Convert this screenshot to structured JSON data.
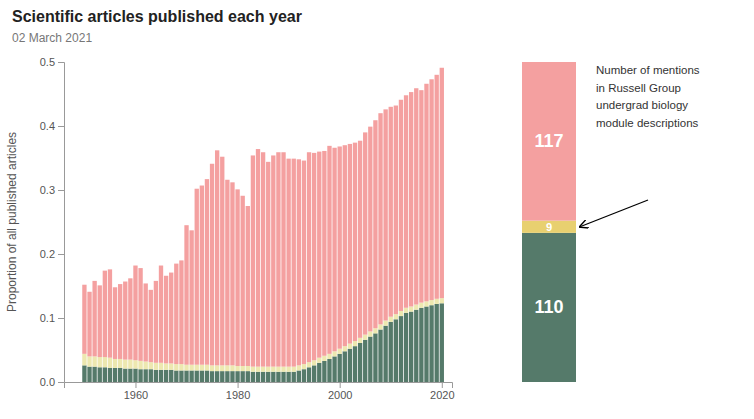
{
  "chart_data": [
    {
      "type": "bar",
      "stacked": true,
      "grid": false,
      "title": "Scientific articles published each year",
      "subtitle": "02 March 2021",
      "ylabel": "Proportion of all published articles",
      "x": [
        1950,
        1951,
        1952,
        1953,
        1954,
        1955,
        1956,
        1957,
        1958,
        1959,
        1960,
        1961,
        1962,
        1963,
        1964,
        1965,
        1966,
        1967,
        1968,
        1969,
        1970,
        1971,
        1972,
        1973,
        1974,
        1975,
        1976,
        1977,
        1978,
        1979,
        1980,
        1981,
        1982,
        1983,
        1984,
        1985,
        1986,
        1987,
        1988,
        1989,
        1990,
        1991,
        1992,
        1993,
        1994,
        1995,
        1996,
        1997,
        1998,
        1999,
        2000,
        2001,
        2002,
        2003,
        2004,
        2005,
        2006,
        2007,
        2008,
        2009,
        2010,
        2011,
        2012,
        2013,
        2014,
        2015,
        2016,
        2017,
        2018,
        2019,
        2020
      ],
      "series": [
        {
          "color": "#557a6a",
          "values": [
            0.026,
            0.024,
            0.024,
            0.023,
            0.023,
            0.022,
            0.022,
            0.022,
            0.021,
            0.021,
            0.021,
            0.02,
            0.02,
            0.02,
            0.019,
            0.019,
            0.019,
            0.019,
            0.018,
            0.018,
            0.018,
            0.018,
            0.018,
            0.018,
            0.018,
            0.017,
            0.017,
            0.017,
            0.017,
            0.017,
            0.017,
            0.017,
            0.017,
            0.016,
            0.016,
            0.016,
            0.016,
            0.016,
            0.016,
            0.016,
            0.016,
            0.016,
            0.018,
            0.02,
            0.023,
            0.026,
            0.03,
            0.033,
            0.036,
            0.04,
            0.044,
            0.048,
            0.052,
            0.056,
            0.061,
            0.066,
            0.071,
            0.076,
            0.082,
            0.088,
            0.094,
            0.098,
            0.103,
            0.108,
            0.11,
            0.113,
            0.116,
            0.118,
            0.12,
            0.122,
            0.123
          ]
        },
        {
          "color": "#ede8b0",
          "values": [
            0.018,
            0.016,
            0.016,
            0.016,
            0.016,
            0.016,
            0.014,
            0.014,
            0.014,
            0.014,
            0.013,
            0.013,
            0.012,
            0.011,
            0.011,
            0.011,
            0.01,
            0.01,
            0.01,
            0.01,
            0.009,
            0.009,
            0.009,
            0.009,
            0.009,
            0.009,
            0.009,
            0.009,
            0.009,
            0.009,
            0.008,
            0.008,
            0.008,
            0.008,
            0.008,
            0.008,
            0.008,
            0.008,
            0.008,
            0.008,
            0.008,
            0.008,
            0.008,
            0.008,
            0.008,
            0.008,
            0.008,
            0.008,
            0.008,
            0.008,
            0.008,
            0.008,
            0.008,
            0.008,
            0.008,
            0.008,
            0.008,
            0.008,
            0.008,
            0.008,
            0.008,
            0.008,
            0.008,
            0.008,
            0.008,
            0.008,
            0.008,
            0.008,
            0.008,
            0.008,
            0.008
          ]
        },
        {
          "color": "#f4a0a0",
          "values": [
            0.108,
            0.101,
            0.118,
            0.112,
            0.135,
            0.138,
            0.112,
            0.117,
            0.122,
            0.127,
            0.148,
            0.145,
            0.122,
            0.113,
            0.128,
            0.152,
            0.137,
            0.142,
            0.157,
            0.162,
            0.218,
            0.21,
            0.275,
            0.28,
            0.29,
            0.315,
            0.336,
            0.326,
            0.29,
            0.286,
            0.276,
            0.266,
            0.25,
            0.33,
            0.34,
            0.335,
            0.32,
            0.33,
            0.335,
            0.335,
            0.325,
            0.325,
            0.322,
            0.318,
            0.328,
            0.324,
            0.322,
            0.32,
            0.325,
            0.318,
            0.316,
            0.314,
            0.312,
            0.31,
            0.308,
            0.316,
            0.32,
            0.325,
            0.33,
            0.33,
            0.328,
            0.326,
            0.33,
            0.332,
            0.335,
            0.338,
            0.332,
            0.34,
            0.345,
            0.35,
            0.36
          ]
        }
      ],
      "xlim": [
        1946,
        2022
      ],
      "xticks": [
        1960,
        1980,
        2000,
        2020
      ],
      "ylim": [
        0.0,
        0.5
      ],
      "yticks": [
        {
          "value": 0.0,
          "label": "0.0"
        },
        {
          "value": 0.1,
          "label": "0.1"
        },
        {
          "value": 0.2,
          "label": "0.2"
        },
        {
          "value": 0.3,
          "label": "0.3"
        },
        {
          "value": 0.4,
          "label": "0.4"
        },
        {
          "value": 0.5,
          "label": "0.5"
        }
      ]
    },
    {
      "type": "bar",
      "stacked": true,
      "data_labels": true,
      "tick_labels": false,
      "annotation": "Number of mentions\nin Russell Group\nundergrad biology\nmodule descriptions",
      "series": [
        {
          "color": "#557a6a",
          "values": [
            110
          ]
        },
        {
          "color": "#e8d070",
          "values": [
            9
          ]
        },
        {
          "color": "#f4a0a0",
          "values": [
            117
          ]
        }
      ],
      "ylim": [
        0,
        236
      ]
    }
  ]
}
